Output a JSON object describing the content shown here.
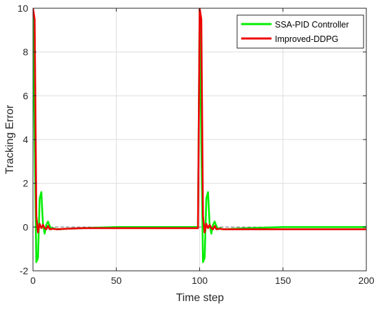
{
  "chart_data": {
    "type": "line",
    "xlabel": "Time step",
    "ylabel": "Tracking Error",
    "xlim": [
      0,
      200
    ],
    "ylim": [
      -2,
      10
    ],
    "x_ticks": [
      0,
      50,
      100,
      150,
      200
    ],
    "y_ticks": [
      -2,
      0,
      2,
      4,
      6,
      8,
      10
    ],
    "grid": true,
    "legend_position": "top-right",
    "reference_line": {
      "y": 0,
      "style": "dashed",
      "color": "#7a7a7a"
    },
    "series": [
      {
        "name": "SSA-PID Controller",
        "color": "#00ee00",
        "x": [
          0,
          1,
          2,
          3,
          4,
          5,
          6,
          7,
          8,
          9,
          10,
          11,
          12,
          14,
          16,
          20,
          30,
          50,
          80,
          99,
          100,
          101,
          102,
          103,
          104,
          105,
          106,
          107,
          108,
          109,
          110,
          111,
          112,
          114,
          116,
          120,
          130,
          150,
          200
        ],
        "y": [
          10,
          4.0,
          -1.6,
          -1.4,
          1.3,
          1.6,
          0.1,
          -0.3,
          0.1,
          0.25,
          0.05,
          -0.1,
          -0.05,
          -0.1,
          -0.1,
          -0.08,
          -0.05,
          0.0,
          0.0,
          0.0,
          10,
          4.0,
          -1.6,
          -1.4,
          1.3,
          1.6,
          0.1,
          -0.3,
          0.1,
          0.25,
          0.05,
          -0.1,
          -0.05,
          -0.1,
          -0.1,
          -0.08,
          -0.05,
          0.0,
          0.0
        ]
      },
      {
        "name": "Improved-DDPG",
        "color": "#ee0000",
        "x": [
          0,
          1,
          2,
          3,
          4,
          5,
          6,
          7,
          8,
          9,
          10,
          12,
          14,
          20,
          30,
          50,
          80,
          99,
          100,
          101,
          102,
          103,
          104,
          105,
          106,
          107,
          108,
          109,
          110,
          112,
          114,
          120,
          130,
          150,
          200
        ],
        "y": [
          10,
          9.5,
          0.5,
          -0.25,
          0.15,
          -0.05,
          0.1,
          -0.05,
          -0.1,
          0.05,
          -0.1,
          -0.08,
          -0.1,
          -0.08,
          -0.05,
          -0.05,
          -0.05,
          -0.05,
          10,
          9.5,
          0.5,
          -0.25,
          0.15,
          -0.05,
          0.1,
          -0.05,
          -0.1,
          0.05,
          -0.1,
          -0.08,
          -0.1,
          -0.1,
          -0.1,
          -0.1,
          -0.1
        ]
      }
    ]
  }
}
